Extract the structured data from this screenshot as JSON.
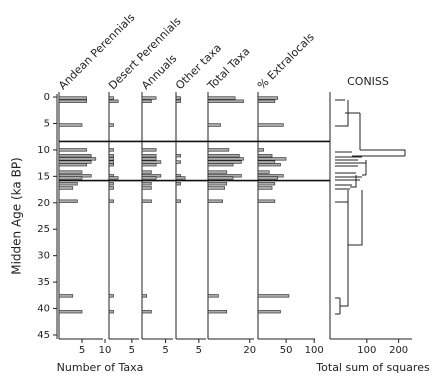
{
  "chart_data": {
    "type": "stratigraphic",
    "ylabel": "Midden Age (ka BP)",
    "ylim": [
      0,
      45
    ],
    "yticks": [
      0,
      5,
      10,
      15,
      20,
      25,
      30,
      35,
      40,
      45
    ],
    "sample_ages": [
      0.2,
      0.8,
      5.3,
      10,
      11.1,
      11.7,
      12.3,
      12.8,
      14.2,
      14.9,
      15.3,
      16.4,
      17.2,
      19.7,
      37.6,
      40.6
    ],
    "zone_boundaries": [
      8.4,
      15.8
    ],
    "xlabel": "Number of Taxa",
    "bar_color": "#aaaaaa",
    "panels": [
      {
        "name": "Andean Perennials",
        "xlim": [
          0,
          10
        ],
        "xticks": [
          5,
          10
        ],
        "values": [
          6,
          6,
          5,
          6,
          7,
          8,
          7,
          6,
          5,
          7,
          5,
          4,
          3,
          4,
          3,
          5
        ]
      },
      {
        "name": "Desert Perennials",
        "xlim": [
          0,
          7
        ],
        "xticks": [
          5
        ],
        "values": [
          1,
          2,
          1,
          1,
          1,
          1,
          1,
          1,
          0,
          1,
          2,
          1,
          1,
          1,
          1,
          1
        ]
      },
      {
        "name": "Annuals",
        "xlim": [
          0,
          7
        ],
        "xticks": [
          5
        ],
        "values": [
          3,
          2,
          0,
          3,
          3,
          3,
          4,
          3,
          2,
          4,
          3,
          2,
          2,
          2,
          1,
          2
        ]
      },
      {
        "name": "Other taxa",
        "xlim": [
          0,
          7
        ],
        "xticks": [
          5
        ],
        "values": [
          1,
          1,
          0,
          0,
          1,
          0,
          1,
          0,
          0,
          1,
          2,
          1,
          0,
          1,
          0,
          0
        ]
      },
      {
        "name": "Total Taxa",
        "xlim": [
          0,
          23
        ],
        "xticks": [
          20
        ],
        "values": [
          13,
          17,
          6,
          10,
          15,
          17,
          16,
          12,
          9,
          16,
          12,
          9,
          8,
          7,
          5,
          9
        ]
      },
      {
        "name": "% Extralocals",
        "xlim": [
          0,
          105
        ],
        "xticks": [
          50,
          100
        ],
        "values": [
          35,
          30,
          45,
          10,
          25,
          50,
          30,
          40,
          20,
          45,
          35,
          30,
          25,
          30,
          55,
          40
        ]
      }
    ],
    "coniss": {
      "title": "CONISS",
      "xlabel": "Total sum of squares",
      "xlim": [
        0,
        220
      ],
      "xticks": [
        100,
        200
      ]
    }
  }
}
